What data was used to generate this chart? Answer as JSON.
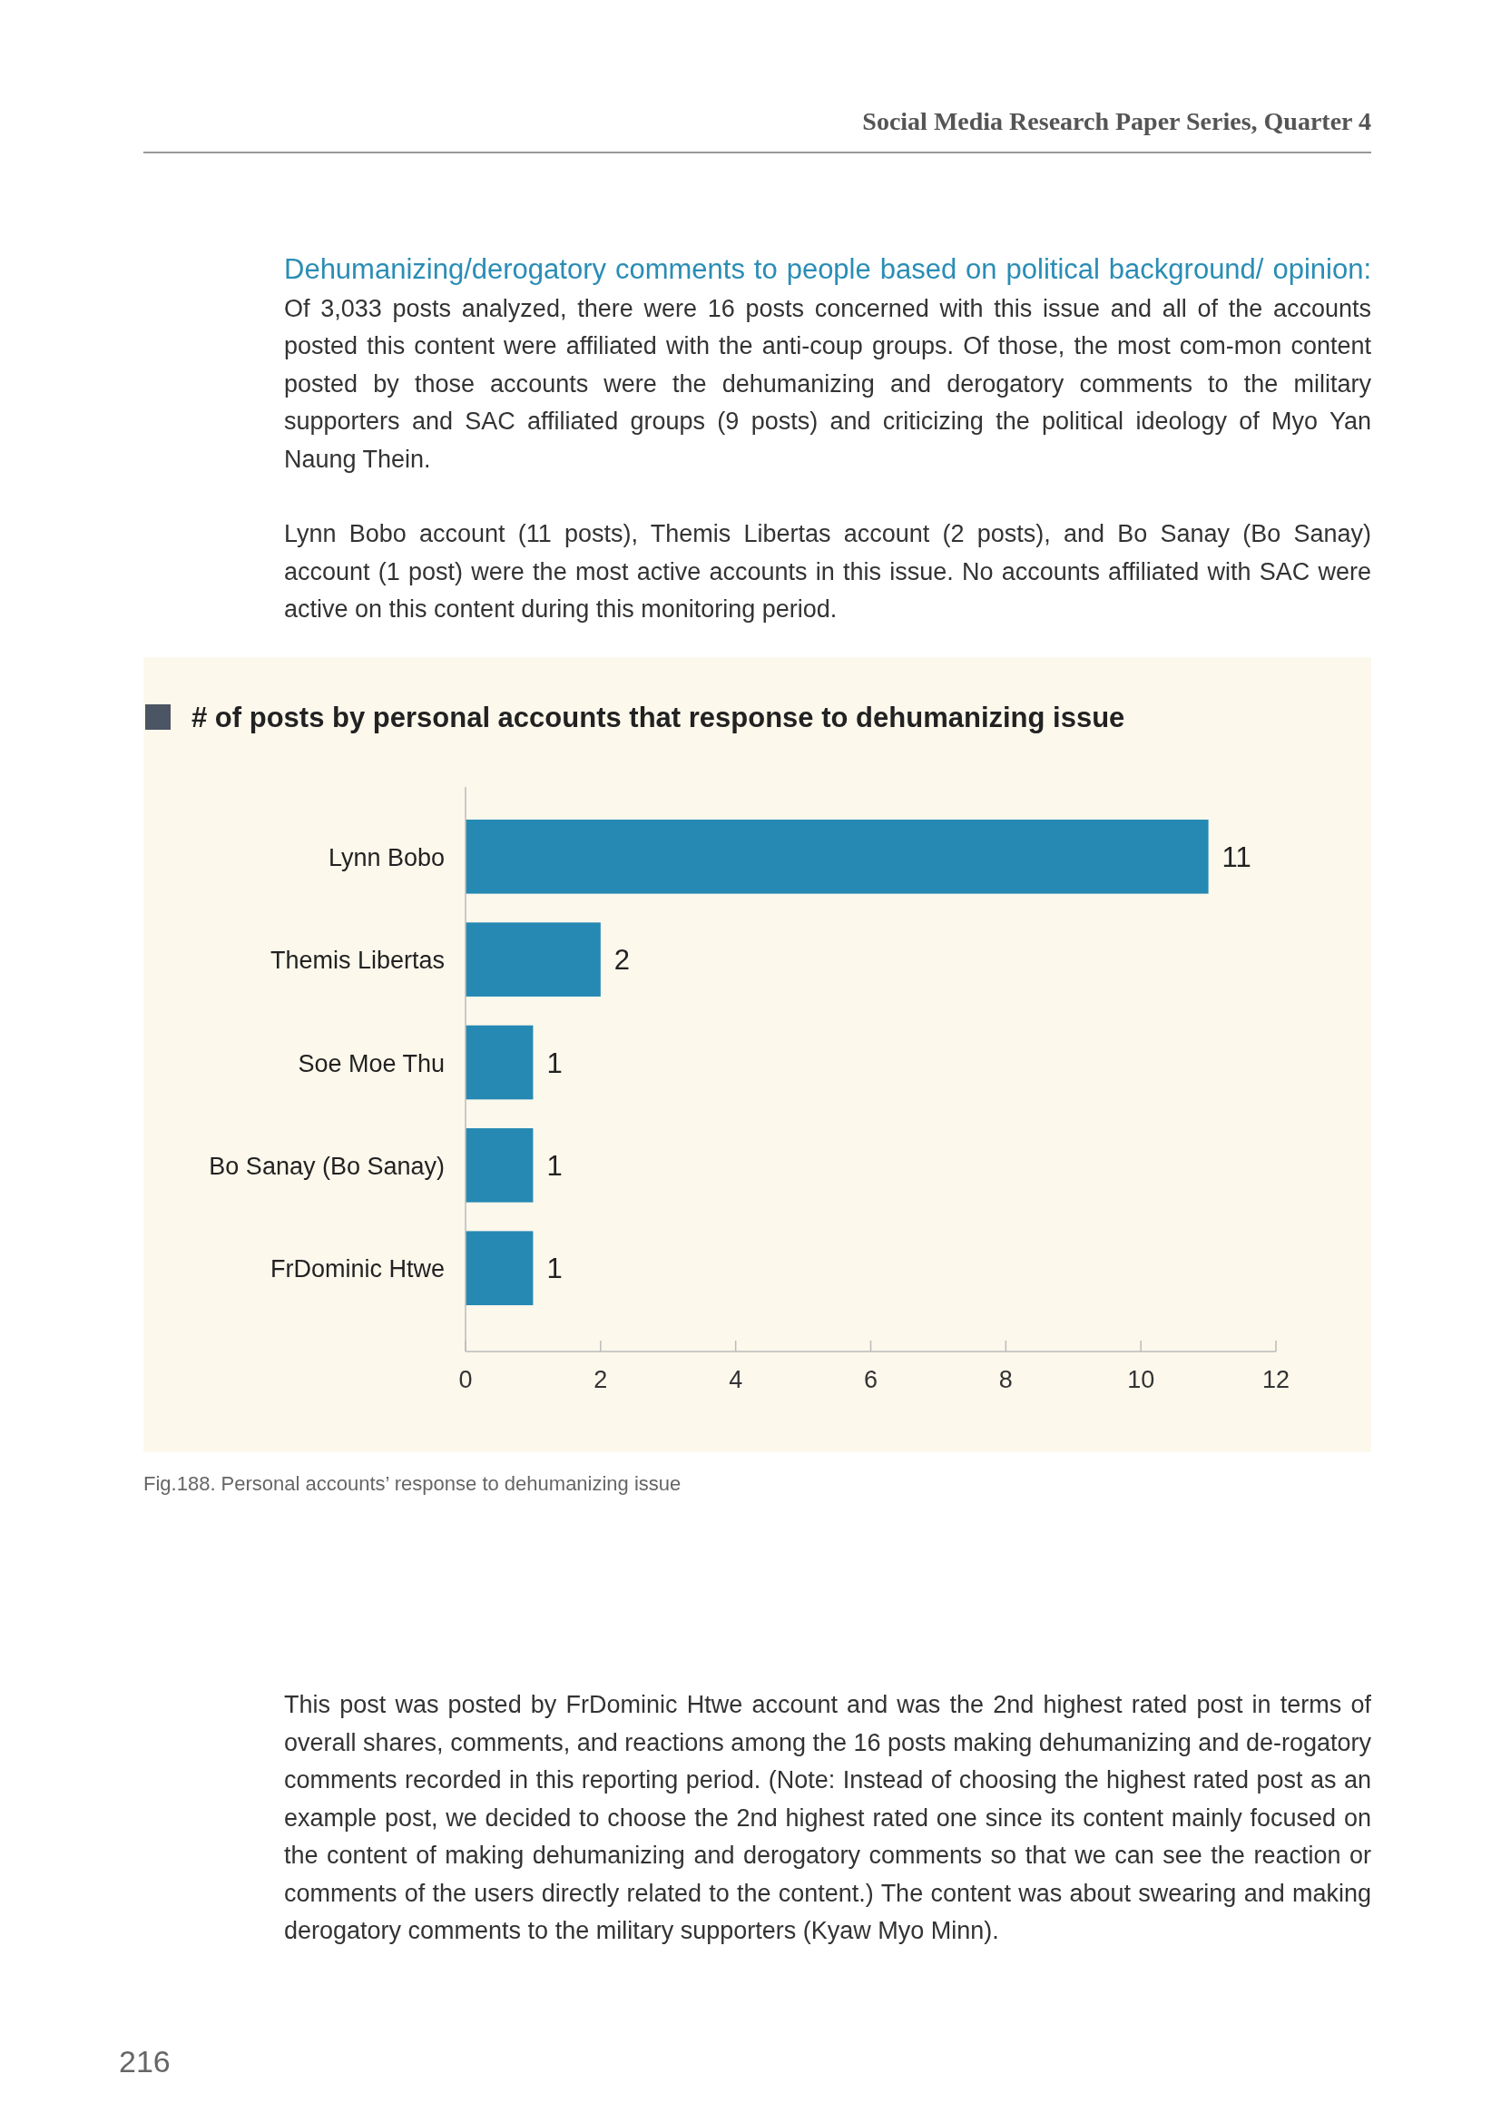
{
  "chart_data": {
    "type": "bar",
    "orientation": "horizontal",
    "title": "# of posts by personal accounts that response to dehumanizing issue",
    "categories": [
      "Lynn Bobo",
      "Themis Libertas",
      "Soe Moe Thu",
      "Bo Sanay (Bo Sanay)",
      "FrDominic Htwe"
    ],
    "values": [
      11,
      2,
      1,
      1,
      1
    ],
    "color": "#2589b3",
    "xlim": [
      0,
      12
    ],
    "xticks": [
      0,
      2,
      4,
      6,
      8,
      10,
      12
    ],
    "grid": false,
    "data_labels": true,
    "annotations": [
      "Social Media Research Paper Series, Quarter 4",
      "Dehumanizing/derogatory comments to people based on political background/ opinion:",
      "Of 3,033 posts analyzed, there were 16 posts concerned with this issue and all of the accounts posted this content were affiliated with the anti-coup groups. Of those, the most com-mon content posted by those accounts were the dehumanizing and derogatory comments to the military supporters and SAC affiliated groups (9 posts) and criticizing the political ideology of Myo Yan Naung Thein.",
      "Lynn Bobo account (11 posts), Themis Libertas account (2 posts), and Bo Sanay (Bo Sanay) account (1 post) were the most active accounts in this issue. No accounts affiliated with SAC were active on this content during this monitoring period.",
      "Fig.188. Personal accounts’ response to dehumanizing issue",
      "This post was posted by FrDominic Htwe account and was the 2nd highest rated post in terms of overall shares, comments, and reactions among the 16 posts making dehumanizing and de-rogatory comments recorded in this reporting period. (Note: Instead of choosing the highest rated post as an example post, we decided to choose the 2nd highest rated one since its content mainly focused on the content of making dehumanizing and derogatory comments so that we can see the reaction or comments of the users directly related to the content.) The content was about swearing and making derogatory comments to the military supporters (Kyaw Myo Minn).",
      "216"
    ]
  }
}
